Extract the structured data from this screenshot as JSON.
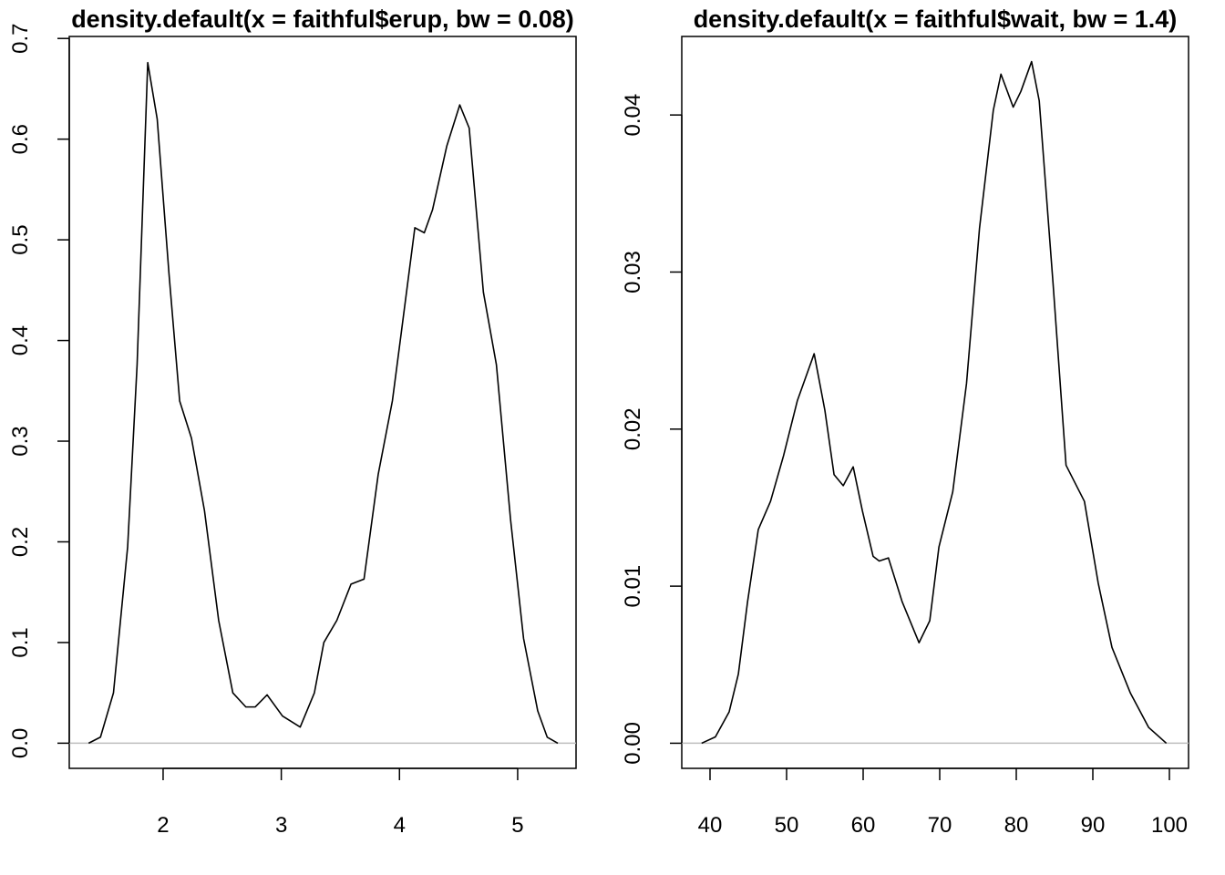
{
  "chart_data": [
    {
      "type": "line",
      "title": "density.default(x = faithful$erup, bw = 0.08)",
      "x": [
        1.37,
        1.47,
        1.58,
        1.7,
        1.78,
        1.87,
        1.95,
        2.05,
        2.14,
        2.24,
        2.35,
        2.47,
        2.59,
        2.7,
        2.78,
        2.88,
        3.01,
        3.16,
        3.28,
        3.36,
        3.47,
        3.59,
        3.7,
        3.82,
        3.94,
        4.01,
        4.13,
        4.21,
        4.28,
        4.4,
        4.51,
        4.59,
        4.71,
        4.82,
        4.94,
        5.05,
        5.17,
        5.25,
        5.34
      ],
      "series": [
        {
          "color": "#000000",
          "values": [
            0,
            0.006,
            0.05,
            0.195,
            0.376,
            0.676,
            0.62,
            0.466,
            0.34,
            0.303,
            0.231,
            0.122,
            0.05,
            0.036,
            0.036,
            0.048,
            0.027,
            0.016,
            0.05,
            0.1,
            0.122,
            0.158,
            0.163,
            0.267,
            0.34,
            0.403,
            0.512,
            0.507,
            0.53,
            0.593,
            0.634,
            0.611,
            0.448,
            0.376,
            0.222,
            0.104,
            0.032,
            0.006,
            0
          ]
        }
      ],
      "xlim": [
        1.206,
        5.494
      ],
      "ylim": [
        -0.025,
        0.702
      ],
      "xticks": [
        2,
        3,
        4,
        5
      ],
      "yticks": [
        {
          "value": 0,
          "label": "0.0"
        },
        0.1,
        0.2,
        0.3,
        0.4,
        0.5,
        0.6,
        0.7
      ],
      "zero_line_color": "#bebebe"
    },
    {
      "type": "line",
      "title": "density.default(x = faithful$wait, bw = 1.4)",
      "x": [
        38.9,
        40.7,
        42.5,
        43.7,
        44.9,
        46.3,
        47.9,
        49.6,
        51.4,
        53.6,
        55.0,
        56.2,
        57.4,
        58.7,
        59.9,
        61.3,
        62.1,
        63.3,
        65.1,
        67.3,
        68.7,
        69.9,
        71.7,
        73.5,
        75.2,
        77.0,
        78.0,
        79.6,
        80.6,
        82.0,
        83.0,
        84.8,
        86.5,
        88.9,
        90.7,
        92.5,
        94.9,
        97.3,
        99.6
      ],
      "series": [
        {
          "color": "#000000",
          "values": [
            0,
            0.0004,
            0.002,
            0.0044,
            0.009,
            0.0136,
            0.0154,
            0.0183,
            0.0218,
            0.0248,
            0.0212,
            0.0171,
            0.0164,
            0.0176,
            0.0148,
            0.0119,
            0.0116,
            0.0118,
            0.009,
            0.0064,
            0.0078,
            0.0125,
            0.016,
            0.0229,
            0.0328,
            0.0403,
            0.0426,
            0.0405,
            0.0415,
            0.0434,
            0.0409,
            0.0293,
            0.0177,
            0.0154,
            0.0102,
            0.0061,
            0.0032,
            0.001,
            0
          ]
        }
      ],
      "xlim": [
        36.31,
        102.5
      ],
      "ylim": [
        -0.0016,
        0.045
      ],
      "xticks": [
        40,
        50,
        60,
        70,
        80,
        90,
        100
      ],
      "yticks": [
        {
          "value": 0,
          "label": "0.00"
        },
        0.01,
        0.02,
        0.03,
        0.04
      ],
      "zero_line_color": "#bebebe"
    }
  ]
}
